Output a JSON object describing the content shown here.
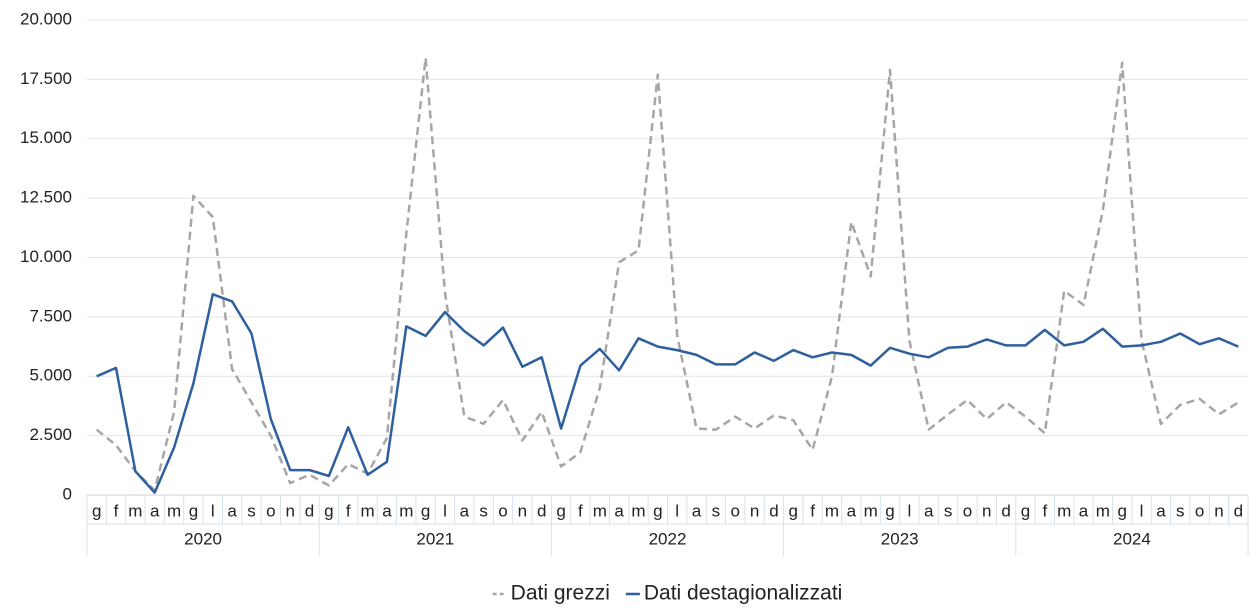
{
  "chart_data": {
    "type": "line",
    "categories": [
      "g",
      "f",
      "m",
      "a",
      "m",
      "g",
      "l",
      "a",
      "s",
      "o",
      "n",
      "d",
      "g",
      "f",
      "m",
      "a",
      "m",
      "g",
      "l",
      "a",
      "s",
      "o",
      "n",
      "d",
      "g",
      "f",
      "m",
      "a",
      "m",
      "g",
      "l",
      "a",
      "s",
      "o",
      "n",
      "d",
      "g",
      "f",
      "m",
      "a",
      "m",
      "g",
      "l",
      "a",
      "s",
      "o",
      "n",
      "d",
      "g",
      "f",
      "m",
      "a",
      "m",
      "g",
      "l",
      "a",
      "s",
      "o",
      "n",
      "d"
    ],
    "groups": [
      "2020",
      "2021",
      "2022",
      "2023",
      "2024"
    ],
    "series": [
      {
        "name": "Dati grezzi",
        "color": "#a6a6a6",
        "line_style": "dashed",
        "values": [
          2750,
          2100,
          1000,
          200,
          3500,
          12600,
          11700,
          5300,
          3900,
          2500,
          500,
          850,
          400,
          1300,
          900,
          2400,
          11000,
          18400,
          8500,
          3300,
          3000,
          4000,
          2300,
          3500,
          1200,
          1800,
          4500,
          9800,
          10300,
          17700,
          6700,
          2800,
          2750,
          3300,
          2800,
          3350,
          3150,
          1900,
          5000,
          11500,
          9200,
          17900,
          6500,
          2750,
          3400,
          4000,
          3200,
          3900,
          3300,
          2600,
          8600,
          8000,
          12000,
          18200,
          6500,
          3000,
          3800,
          4050,
          3400,
          3900
        ]
      },
      {
        "name": "Dati destagionalizzati",
        "color": "#2e5f9e",
        "line_style": "solid",
        "values": [
          5000,
          5350,
          1000,
          100,
          2000,
          4700,
          8450,
          8150,
          6800,
          3200,
          1050,
          1050,
          800,
          2850,
          850,
          1400,
          7100,
          6700,
          7700,
          6900,
          6300,
          7050,
          5400,
          5800,
          2800,
          5450,
          6150,
          5250,
          6600,
          6250,
          6100,
          5900,
          5500,
          5500,
          6000,
          5650,
          6100,
          5800,
          6000,
          5900,
          5450,
          6200,
          5950,
          5800,
          6200,
          6250,
          6550,
          6300,
          6300,
          6950,
          6300,
          6450,
          7000,
          6250,
          6300,
          6450,
          6800,
          6350,
          6600,
          6250
        ]
      }
    ],
    "ylim": [
      0,
      20000
    ],
    "yticks": [
      0,
      {
        "value": 2500,
        "label": "2.500"
      },
      {
        "value": 5000,
        "label": "5.000"
      },
      {
        "value": 7500,
        "label": "7.500"
      },
      {
        "value": 10000,
        "label": "10.000"
      },
      {
        "value": 12500,
        "label": "12.500"
      },
      {
        "value": 15000,
        "label": "15.000"
      },
      {
        "value": 17500,
        "label": "17.500"
      },
      {
        "value": 20000,
        "label": "20.000"
      }
    ],
    "grid": true,
    "legend": "bottom"
  }
}
